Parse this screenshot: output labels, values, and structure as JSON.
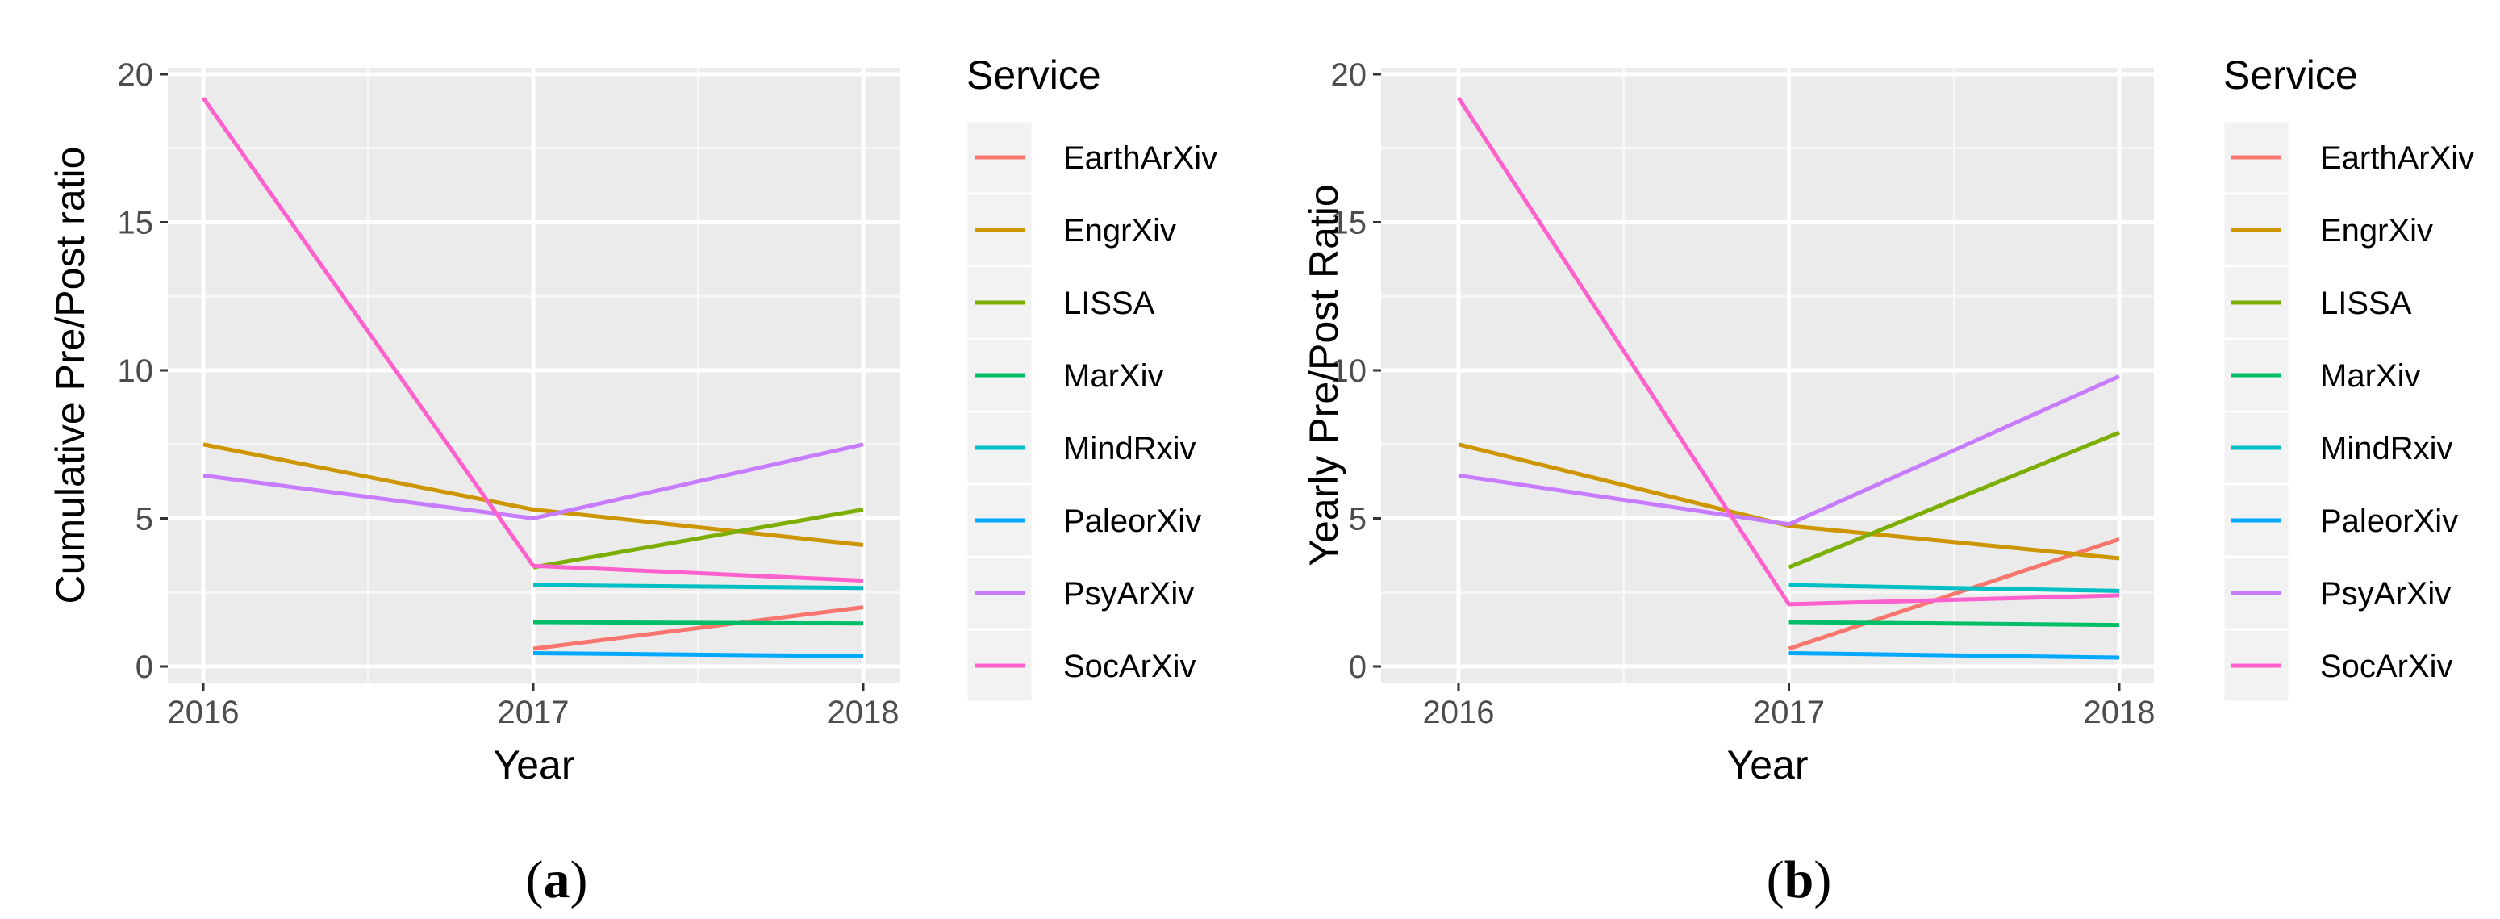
{
  "chart_data": [
    {
      "type": "line",
      "panel_label": "a",
      "caption_parts": [
        "(",
        "a",
        ")"
      ],
      "title": "",
      "xlabel": "Year",
      "ylabel": "Cumulative Pre/Post ratio",
      "x_ticks": [
        "2016",
        "2017",
        "2018"
      ],
      "y_ticks": [
        "0",
        "5",
        "10",
        "15",
        "20"
      ],
      "xlim": [
        2016,
        2018
      ],
      "ylim": [
        0,
        20
      ],
      "grid": true,
      "legend_title": "Service",
      "legend_position": "right",
      "series": [
        {
          "name": "EarthArXiv",
          "color": "#F8766D",
          "x": [
            2017,
            2018
          ],
          "values": [
            0.6,
            2.0
          ]
        },
        {
          "name": "EngrXiv",
          "color": "#CD9600",
          "x": [
            2016,
            2017,
            2018
          ],
          "values": [
            7.5,
            5.3,
            4.1
          ]
        },
        {
          "name": "LISSA",
          "color": "#7CAE00",
          "x": [
            2017,
            2018
          ],
          "values": [
            3.35,
            5.3
          ]
        },
        {
          "name": "MarXiv",
          "color": "#00BE67",
          "x": [
            2017,
            2018
          ],
          "values": [
            1.5,
            1.45
          ]
        },
        {
          "name": "MindRxiv",
          "color": "#00BFC4",
          "x": [
            2017,
            2018
          ],
          "values": [
            2.75,
            2.65
          ]
        },
        {
          "name": "PaleorXiv",
          "color": "#00A9FF",
          "x": [
            2017,
            2018
          ],
          "values": [
            0.45,
            0.35
          ]
        },
        {
          "name": "PsyArXiv",
          "color": "#C77CFF",
          "x": [
            2016,
            2017,
            2018
          ],
          "values": [
            6.45,
            5.0,
            7.5
          ]
        },
        {
          "name": "SocArXiv",
          "color": "#FF61CC",
          "x": [
            2016,
            2017,
            2018
          ],
          "values": [
            19.2,
            3.4,
            2.9
          ]
        }
      ]
    },
    {
      "type": "line",
      "panel_label": "b",
      "caption_parts": [
        "(",
        "b",
        ")"
      ],
      "title": "",
      "xlabel": "Year",
      "ylabel": "Yearly Pre/Post Ratio",
      "x_ticks": [
        "2016",
        "2017",
        "2018"
      ],
      "y_ticks": [
        "0",
        "5",
        "10",
        "15",
        "20"
      ],
      "xlim": [
        2016,
        2018
      ],
      "ylim": [
        0,
        20
      ],
      "grid": true,
      "legend_title": "Service",
      "legend_position": "right",
      "series": [
        {
          "name": "EarthArXiv",
          "color": "#F8766D",
          "x": [
            2017,
            2018
          ],
          "values": [
            0.6,
            4.3
          ]
        },
        {
          "name": "EngrXiv",
          "color": "#CD9600",
          "x": [
            2016,
            2017,
            2018
          ],
          "values": [
            7.5,
            4.75,
            3.65
          ]
        },
        {
          "name": "LISSA",
          "color": "#7CAE00",
          "x": [
            2017,
            2018
          ],
          "values": [
            3.35,
            7.9
          ]
        },
        {
          "name": "MarXiv",
          "color": "#00BE67",
          "x": [
            2017,
            2018
          ],
          "values": [
            1.5,
            1.4
          ]
        },
        {
          "name": "MindRxiv",
          "color": "#00BFC4",
          "x": [
            2017,
            2018
          ],
          "values": [
            2.75,
            2.55
          ]
        },
        {
          "name": "PaleorXiv",
          "color": "#00A9FF",
          "x": [
            2017,
            2018
          ],
          "values": [
            0.45,
            0.3
          ]
        },
        {
          "name": "PsyArXiv",
          "color": "#C77CFF",
          "x": [
            2016,
            2017,
            2018
          ],
          "values": [
            6.45,
            4.8,
            9.8
          ]
        },
        {
          "name": "SocArXiv",
          "color": "#FF61CC",
          "x": [
            2016,
            2017,
            2018
          ],
          "values": [
            19.2,
            2.1,
            2.4
          ]
        }
      ]
    }
  ]
}
